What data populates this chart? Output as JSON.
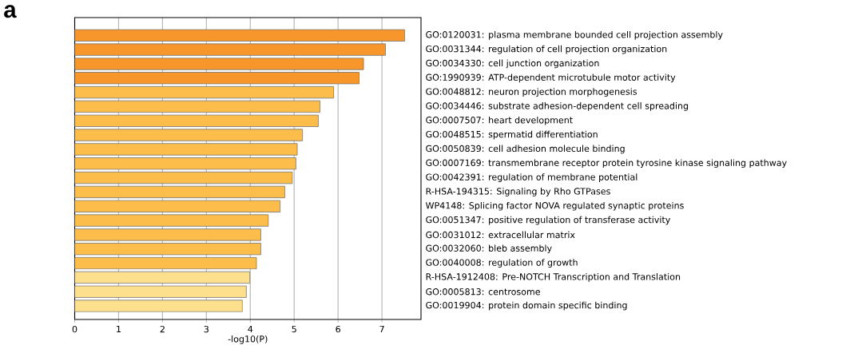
{
  "chart_data": {
    "type": "bar",
    "orientation": "horizontal",
    "xlabel": "-log10(P)",
    "annotations": [
      "a"
    ],
    "categories": [
      "GO:0120031: plasma membrane bounded cell projection assembly",
      "GO:0031344: regulation of cell projection organization",
      "GO:0034330: cell junction organization",
      "GO:1990939: ATP-dependent microtubule motor activity",
      "GO:0048812: neuron projection morphogenesis",
      "GO:0034446: substrate adhesion-dependent cell spreading",
      "GO:0007507: heart development",
      "GO:0048515: spermatid differentiation",
      "GO:0050839: cell adhesion molecule binding",
      "GO:0007169: transmembrane receptor protein tyrosine kinase signaling pathway",
      "GO:0042391: regulation of membrane potential",
      "R-HSA-194315: Signaling by Rho GTPases",
      "WP4148: Splicing factor NOVA regulated synaptic proteins",
      "GO:0051347: positive regulation of transferase activity",
      "GO:0031012: extracellular matrix",
      "GO:0032060: bleb assembly",
      "GO:0040008: regulation of growth",
      "R-HSA-1912408: Pre-NOTCH Transcription and Translation",
      "GO:0005813: centrosome",
      "GO:0019904: protein domain specific binding"
    ],
    "values": [
      7.52,
      7.08,
      6.58,
      6.48,
      5.9,
      5.59,
      5.55,
      5.19,
      5.07,
      5.04,
      4.96,
      4.79,
      4.68,
      4.41,
      4.24,
      4.24,
      4.14,
      3.99,
      3.91,
      3.82
    ],
    "colors": [
      "#f7962a",
      "#f7962a",
      "#f7962a",
      "#f7962a",
      "#fcbd4a",
      "#fcbd4a",
      "#fcbd4a",
      "#fcbd4a",
      "#fcbd4a",
      "#fcbd4a",
      "#fcbd4a",
      "#fcbd4a",
      "#fcbd4a",
      "#fcbd4a",
      "#fcbd4a",
      "#fcbd4a",
      "#fcbd4a",
      "#fde08d",
      "#fde08d",
      "#fde08d"
    ],
    "xlim": [
      0,
      7.89
    ],
    "xticks": [
      0,
      1,
      2,
      3,
      4,
      5,
      6,
      7
    ],
    "grid": "x"
  }
}
